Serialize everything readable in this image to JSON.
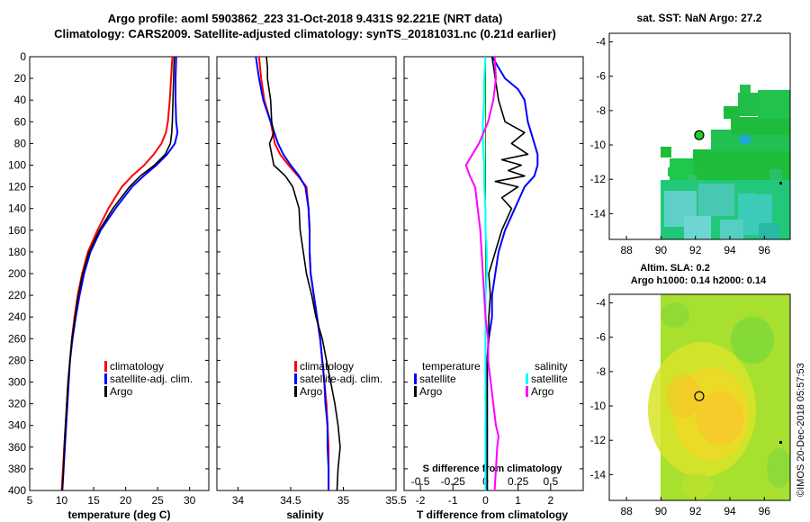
{
  "header": {
    "title_line1": "Argo profile: aoml 5903862_223 31-Oct-2018 9.431S 92.221E (NRT data)",
    "title_line2": "Climatology: CARS2009. Satellite-adjusted climatology: synTS_20181031.nc (0.21d earlier)"
  },
  "credit": "©IMOS 20-Dec-2018 05:57:53",
  "colors": {
    "climatology": "#ff0000",
    "satellite": "#0000ff",
    "argo": "#000000",
    "sal_satellite": "#00ffff",
    "sal_argo": "#ff00ff",
    "zero_line": "#00a000"
  },
  "chart_data": [
    {
      "type": "line",
      "title": "",
      "xlabel": "temperature (deg C)",
      "ylabel": "",
      "xlim": [
        5,
        33
      ],
      "ylim": [
        400,
        0
      ],
      "xticks": [
        5,
        10,
        15,
        20,
        25,
        30
      ],
      "yticks": [
        0,
        20,
        40,
        60,
        80,
        100,
        120,
        140,
        160,
        180,
        200,
        220,
        240,
        260,
        280,
        300,
        320,
        340,
        360,
        380,
        400
      ],
      "legend": [
        "climatology",
        "satellite-adj. clim.",
        "Argo"
      ],
      "series": [
        {
          "name": "climatology",
          "depth": [
            0,
            20,
            40,
            60,
            70,
            80,
            90,
            100,
            110,
            120,
            140,
            160,
            180,
            200,
            220,
            240,
            260,
            280,
            300,
            320,
            340,
            360,
            380,
            400
          ],
          "values": [
            27.3,
            27.1,
            26.9,
            26.6,
            26.3,
            25.6,
            24.4,
            22.9,
            21.0,
            19.4,
            17.3,
            15.6,
            14.1,
            13.2,
            12.5,
            12.0,
            11.6,
            11.3,
            11.0,
            10.8,
            10.6,
            10.4,
            10.2,
            10.0
          ]
        },
        {
          "name": "satellite-adj. clim.",
          "depth": [
            0,
            20,
            40,
            60,
            70,
            80,
            90,
            100,
            110,
            120,
            140,
            160,
            180,
            200,
            220,
            240,
            260,
            280,
            300,
            320,
            340,
            360,
            380,
            400
          ],
          "values": [
            27.9,
            27.8,
            27.8,
            27.9,
            28.1,
            27.7,
            26.5,
            24.8,
            22.8,
            21.0,
            18.4,
            16.1,
            14.5,
            13.5,
            12.8,
            12.2,
            11.7,
            11.3,
            11.1,
            10.9,
            10.7,
            10.5,
            10.3,
            10.1
          ]
        },
        {
          "name": "Argo",
          "depth": [
            0,
            20,
            40,
            60,
            70,
            80,
            90,
            100,
            110,
            120,
            140,
            160,
            180,
            200,
            220,
            240,
            260,
            280,
            300,
            320,
            340,
            360,
            380,
            400
          ],
          "values": [
            27.6,
            27.5,
            27.4,
            27.3,
            27.2,
            27.0,
            26.2,
            24.5,
            22.3,
            20.6,
            18.0,
            15.9,
            14.3,
            13.3,
            12.6,
            12.1,
            11.6,
            11.3,
            11.0,
            10.8,
            10.6,
            10.4,
            10.3,
            10.1
          ]
        }
      ]
    },
    {
      "type": "line",
      "xlabel": "salinity",
      "xlim": [
        33.8,
        35.5
      ],
      "ylim": [
        400,
        0
      ],
      "xticks": [
        34,
        34.5,
        35,
        35.5
      ],
      "xtick_labels": [
        "34",
        "34.5",
        "35",
        "35.5"
      ],
      "legend": [
        "climatology",
        "satellite-adj. clim.",
        "Argo"
      ],
      "series": [
        {
          "name": "climatology",
          "depth": [
            0,
            20,
            40,
            60,
            80,
            90,
            100,
            110,
            120,
            140,
            160,
            180,
            200,
            220,
            240,
            260,
            280,
            300,
            320,
            340,
            360,
            380,
            400
          ],
          "values": [
            34.2,
            34.22,
            34.25,
            34.31,
            34.35,
            34.4,
            34.48,
            34.57,
            34.65,
            34.67,
            34.68,
            34.68,
            34.69,
            34.72,
            34.75,
            34.78,
            34.8,
            34.82,
            34.84,
            34.85,
            34.86,
            34.86,
            34.86
          ]
        },
        {
          "name": "satellite-adj. clim.",
          "depth": [
            0,
            20,
            40,
            60,
            80,
            90,
            100,
            110,
            120,
            140,
            160,
            180,
            200,
            220,
            240,
            260,
            280,
            300,
            320,
            340,
            360,
            380,
            400
          ],
          "values": [
            34.17,
            34.2,
            34.24,
            34.31,
            34.38,
            34.43,
            34.5,
            34.58,
            34.64,
            34.67,
            34.68,
            34.68,
            34.69,
            34.72,
            34.75,
            34.78,
            34.8,
            34.82,
            34.83,
            34.85,
            34.85,
            34.86,
            34.86
          ]
        },
        {
          "name": "Argo",
          "depth": [
            0,
            10,
            20,
            40,
            60,
            70,
            80,
            90,
            100,
            110,
            120,
            130,
            140,
            160,
            180,
            200,
            220,
            240,
            260,
            280,
            300,
            320,
            340,
            360,
            380,
            400
          ],
          "values": [
            34.27,
            34.28,
            34.28,
            34.31,
            34.32,
            34.34,
            34.3,
            34.32,
            34.34,
            34.45,
            34.52,
            34.55,
            34.58,
            34.59,
            34.62,
            34.65,
            34.7,
            34.74,
            34.8,
            34.84,
            34.88,
            34.92,
            34.95,
            34.97,
            34.95,
            34.94
          ]
        }
      ]
    },
    {
      "type": "line",
      "xlabel": "T difference from climatology",
      "xlim": [
        -2.5,
        3.0
      ],
      "ylim": [
        400,
        0
      ],
      "xticks": [
        -2,
        -1,
        0,
        1,
        2
      ],
      "s_axis_label": "S difference from climatology",
      "s_xlim": [
        -0.625,
        0.75
      ],
      "s_xticks": [
        -0.5,
        -0.25,
        0,
        0.25,
        0.5
      ],
      "s_xtick_labels": [
        "-0.5",
        "-0.25",
        "0",
        "0.25",
        "0.5"
      ],
      "legend_temperature_title": "temperature",
      "legend_salinity_title": "salinity",
      "legend_temperature": [
        "satellite",
        "Argo"
      ],
      "legend_salinity": [
        "satellite",
        "Argo"
      ],
      "series": [
        {
          "name": "T satellite",
          "axis": "T",
          "depth": [
            0,
            20,
            30,
            40,
            60,
            80,
            90,
            100,
            110,
            120,
            140,
            160,
            180,
            200,
            220,
            240,
            260,
            280,
            300,
            320,
            340,
            360,
            380,
            400
          ],
          "values": [
            0.2,
            0.6,
            1.0,
            1.2,
            1.3,
            1.5,
            1.6,
            1.6,
            1.5,
            1.2,
            0.9,
            0.6,
            0.4,
            0.3,
            0.2,
            0.2,
            0.1,
            0.05,
            0.05,
            0.05,
            0.05,
            0.05,
            0.05,
            0.05
          ]
        },
        {
          "name": "T Argo",
          "axis": "T",
          "depth": [
            0,
            20,
            40,
            60,
            70,
            80,
            90,
            95,
            100,
            105,
            110,
            115,
            120,
            130,
            140,
            160,
            180,
            200,
            220,
            240,
            260,
            280,
            300,
            320,
            340,
            360,
            380,
            400
          ],
          "values": [
            0.2,
            0.3,
            0.4,
            0.6,
            1.2,
            0.8,
            1.3,
            0.5,
            1.1,
            0.7,
            1.2,
            0.3,
            1.0,
            0.5,
            0.8,
            0.5,
            0.3,
            0.1,
            0.15,
            0.1,
            0.1,
            0.05,
            0.05,
            0.05,
            0.05,
            0.05,
            0.05,
            0.05
          ]
        },
        {
          "name": "S satellite",
          "axis": "S",
          "depth": [
            0,
            20,
            40,
            60,
            80,
            100,
            120,
            140,
            160,
            180,
            200,
            220,
            240,
            260,
            280,
            300,
            320,
            340,
            360,
            380,
            400
          ],
          "values": [
            0.0,
            -0.01,
            -0.01,
            -0.02,
            -0.02,
            -0.01,
            -0.01,
            0.0,
            0.0,
            0.01,
            0.01,
            0.0,
            0.0,
            0.0,
            0.0,
            0.0,
            0.0,
            0.0,
            0.0,
            0.0,
            0.0
          ]
        },
        {
          "name": "S Argo",
          "axis": "S",
          "depth": [
            0,
            20,
            40,
            60,
            80,
            90,
            100,
            110,
            120,
            140,
            160,
            180,
            200,
            220,
            240,
            260,
            280,
            300,
            320,
            340,
            350,
            360,
            380,
            400
          ],
          "values": [
            0.07,
            0.08,
            0.06,
            0.02,
            -0.05,
            -0.1,
            -0.15,
            -0.12,
            -0.08,
            -0.06,
            -0.04,
            -0.03,
            -0.02,
            -0.01,
            0.0,
            0.02,
            0.02,
            0.04,
            0.06,
            0.08,
            0.1,
            0.09,
            0.08,
            0.07
          ]
        }
      ]
    },
    {
      "type": "heatmap",
      "title": "sat. SST: NaN Argo: 27.2",
      "xlim": [
        87,
        97.5
      ],
      "ylim": [
        -15.5,
        -3.5
      ],
      "xticks": [
        88,
        90,
        92,
        94,
        96
      ],
      "yticks": [
        -4,
        -6,
        -8,
        -10,
        -12,
        -14
      ],
      "argo_position": [
        92.221,
        -9.431
      ]
    },
    {
      "type": "heatmap",
      "title": "Altim. SLA: 0.2",
      "subtitle": "Argo h1000: 0.14 h2000: 0.14",
      "xlim": [
        87,
        97.5
      ],
      "ylim": [
        -15.5,
        -3.5
      ],
      "xticks": [
        88,
        90,
        92,
        94,
        96
      ],
      "yticks": [
        -4,
        -6,
        -8,
        -10,
        -12,
        -14
      ],
      "argo_position": [
        92.221,
        -9.431
      ]
    }
  ]
}
